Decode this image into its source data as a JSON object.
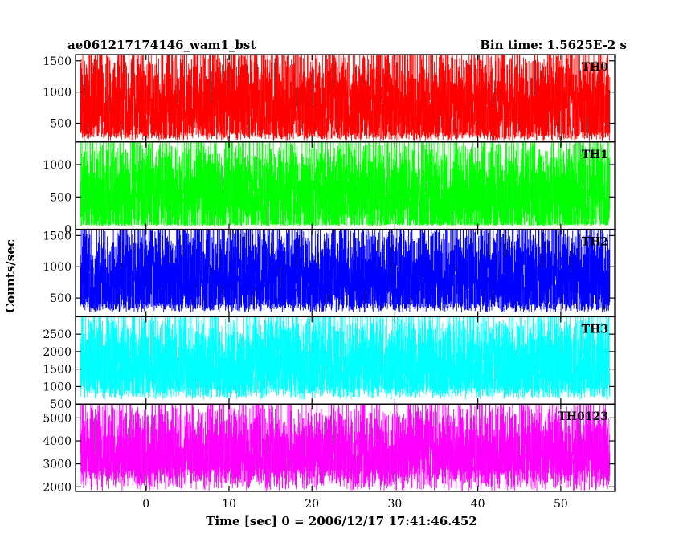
{
  "chart_data": {
    "type": "line",
    "title_left": "ae061217174146_wam1_bst",
    "title_right": "Bin time: 1.5625E-2 s",
    "xlabel": "Time [sec] 0 = 2006/12/17 17:41:46.452",
    "ylabel": "Counts/sec",
    "xlim": [
      -8.5,
      56.5
    ],
    "data_x_range": [
      -7.9,
      55.9
    ],
    "x_ticks": [
      0,
      10,
      20,
      30,
      40,
      50
    ],
    "grid": false,
    "panels": [
      {
        "name": "TH0",
        "color": "#ff0000",
        "ylim": [
          200,
          1600
        ],
        "y_ticks": [
          500,
          1000,
          1500
        ],
        "mean": 700,
        "low": 250,
        "high": 1550
      },
      {
        "name": "TH1",
        "color": "#00ff00",
        "ylim": [
          0,
          1350
        ],
        "y_ticks": [
          0,
          500,
          1000
        ],
        "mean": 500,
        "low": 60,
        "high": 1250
      },
      {
        "name": "TH2",
        "color": "#0000ff",
        "ylim": [
          200,
          1600
        ],
        "y_ticks": [
          500,
          1000,
          1500
        ],
        "mean": 800,
        "low": 300,
        "high": 1550
      },
      {
        "name": "TH3",
        "color": "#00ffff",
        "ylim": [
          500,
          3000
        ],
        "y_ticks": [
          500,
          1000,
          1500,
          2000,
          2500
        ],
        "mean": 1650,
        "low": 700,
        "high": 2800
      },
      {
        "name": "TH0123",
        "color": "#ff00ff",
        "ylim": [
          1800,
          5600
        ],
        "y_ticks": [
          2000,
          3000,
          4000,
          5000
        ],
        "mean": 3300,
        "low": 2000,
        "high": 5200
      }
    ]
  }
}
